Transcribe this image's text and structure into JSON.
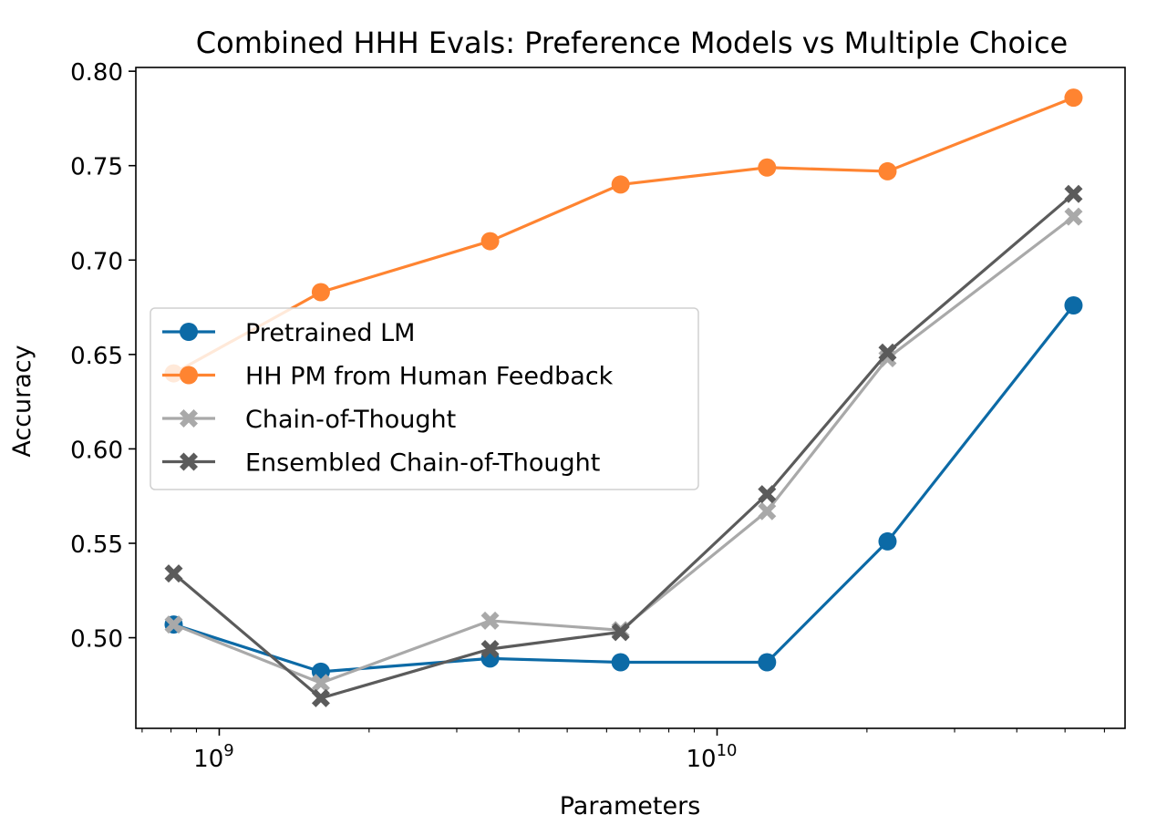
{
  "chart_data": {
    "type": "line",
    "title": "Combined HHH Evals: Preference Models vs Multiple Choice",
    "xlabel": "Parameters",
    "ylabel": "Accuracy",
    "xscale": "log",
    "xlim": [
      680000000,
      66000000000
    ],
    "ylim": [
      0.452,
      0.802
    ],
    "grid": false,
    "legend_location": "center-left",
    "x": [
      810000000,
      1600000000,
      3500000000,
      6400000000,
      12600000000,
      22000000000,
      52000000000
    ],
    "xticks": [
      {
        "value": 1000000000,
        "base": "10",
        "exp": "9"
      },
      {
        "value": 10000000000,
        "base": "10",
        "exp": "10"
      }
    ],
    "yticks": [
      "0.50",
      "0.55",
      "0.60",
      "0.65",
      "0.70",
      "0.75",
      "0.80"
    ],
    "series": [
      {
        "name": "Pretrained LM",
        "color": "#0c6aa6",
        "marker": "circle",
        "values": [
          0.507,
          0.482,
          0.489,
          0.487,
          0.487,
          0.551,
          0.676
        ]
      },
      {
        "name": "HH PM from Human Feedback",
        "color": "#ff8431",
        "marker": "circle",
        "values": [
          0.64,
          0.683,
          0.71,
          0.74,
          0.749,
          0.747,
          0.786
        ]
      },
      {
        "name": "Chain-of-Thought",
        "color": "#a9a9a9",
        "marker": "x",
        "values": [
          0.507,
          0.476,
          0.509,
          0.504,
          0.567,
          0.648,
          0.723
        ]
      },
      {
        "name": "Ensembled Chain-of-Thought",
        "color": "#5b5b5b",
        "marker": "x",
        "values": [
          0.534,
          0.468,
          0.494,
          0.503,
          0.576,
          0.651,
          0.735
        ]
      }
    ]
  }
}
